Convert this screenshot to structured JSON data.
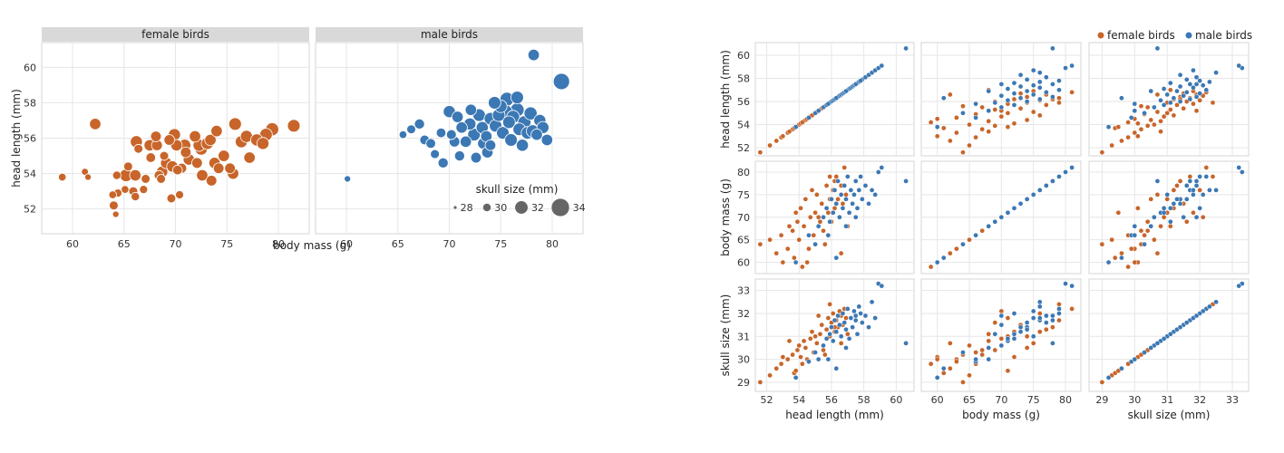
{
  "colors": {
    "female": "#c8652a",
    "male": "#3c78b4",
    "legend_gray": "#666666"
  },
  "chart_data": [
    {
      "type": "scatter",
      "title": "",
      "facets": [
        "female birds",
        "male birds"
      ],
      "xlabel": "body mass (g)",
      "ylabel": "head length (mm)",
      "xlim": [
        57,
        83
      ],
      "ylim": [
        50.6,
        61.4
      ],
      "facet_xticks": [
        [
          60,
          65,
          70,
          75,
          80
        ],
        [
          60,
          65,
          70,
          75,
          80
        ]
      ],
      "yticks": [
        52,
        54,
        56,
        58,
        60
      ],
      "size_legend": {
        "title": "skull size (mm)",
        "values": [
          28,
          30,
          32,
          34
        ]
      },
      "series": [
        {
          "name": "female birds",
          "points": [
            [
              59,
              53.8,
              30.0
            ],
            [
              61.2,
              54.1,
              29.7
            ],
            [
              61.5,
              53.8,
              29.5
            ],
            [
              62.2,
              56.8,
              31.5
            ],
            [
              63.9,
              52.8,
              30.0
            ],
            [
              64,
              52.2,
              30.5
            ],
            [
              64.2,
              51.7,
              29.5
            ],
            [
              64.3,
              53.9,
              30.3
            ],
            [
              64.4,
              52.9,
              30.2
            ],
            [
              65.1,
              53.1,
              30.0
            ],
            [
              65.2,
              53.9,
              32.0
            ],
            [
              65.4,
              54.4,
              30.5
            ],
            [
              65.9,
              53.0,
              30.5
            ],
            [
              66.1,
              53.9,
              31.5
            ],
            [
              66.2,
              55.8,
              31.8
            ],
            [
              66.4,
              55.4,
              30.5
            ],
            [
              66.1,
              52.7,
              30.3
            ],
            [
              66.9,
              53.1,
              30.2
            ],
            [
              67.1,
              53.7,
              30.5
            ],
            [
              67.6,
              54.9,
              30.8
            ],
            [
              68.1,
              56.1,
              31.2
            ],
            [
              68.2,
              55.6,
              31.3
            ],
            [
              68.4,
              53.9,
              30.8
            ],
            [
              68.7,
              54.1,
              31.5
            ],
            [
              68.9,
              55.0,
              30.5
            ],
            [
              69.1,
              54.6,
              31.5
            ],
            [
              69.4,
              55.9,
              31.2
            ],
            [
              69.6,
              52.6,
              30.5
            ],
            [
              69.7,
              54.4,
              31.5
            ],
            [
              69.9,
              56.2,
              31.8
            ],
            [
              70.1,
              55.6,
              31.5
            ],
            [
              70.2,
              54.2,
              30.8
            ],
            [
              70.4,
              52.8,
              30.2
            ],
            [
              70.6,
              54.3,
              31.0
            ],
            [
              70.9,
              55.6,
              31.8
            ],
            [
              71.3,
              54.8,
              31.5
            ],
            [
              71.9,
              56.1,
              31.5
            ],
            [
              72.1,
              54.6,
              31.2
            ],
            [
              72.3,
              55.6,
              31.8
            ],
            [
              72.6,
              53.9,
              31.5
            ],
            [
              72.5,
              55.4,
              32.0
            ],
            [
              73.1,
              55.7,
              31.8
            ],
            [
              73.4,
              55.9,
              31.5
            ],
            [
              73.8,
              54.6,
              31.5
            ],
            [
              74.0,
              56.4,
              31.5
            ],
            [
              74.2,
              54.3,
              31.2
            ],
            [
              74.7,
              55.0,
              31.5
            ],
            [
              75.3,
              54.3,
              31.2
            ],
            [
              75.6,
              54.0,
              31.5
            ],
            [
              75.8,
              56.8,
              32.0
            ],
            [
              76.4,
              55.8,
              31.8
            ],
            [
              76.9,
              56.1,
              31.8
            ],
            [
              77.2,
              54.9,
              31.5
            ],
            [
              77.9,
              55.9,
              31.8
            ],
            [
              78.5,
              55.7,
              31.8
            ],
            [
              78.8,
              56.2,
              32.0
            ],
            [
              79.4,
              56.5,
              32.2
            ],
            [
              81.5,
              56.7,
              32.0
            ],
            [
              67.5,
              55.6,
              31.5
            ],
            [
              68.6,
              53.7,
              30.5
            ],
            [
              71.0,
              55.2,
              31.2
            ],
            [
              73.5,
              53.6,
              31.2
            ]
          ]
        },
        {
          "name": "male birds",
          "points": [
            [
              60.1,
              53.7,
              29.5
            ],
            [
              65.5,
              56.2,
              30.0
            ],
            [
              66.3,
              56.5,
              30.5
            ],
            [
              67.1,
              56.8,
              31.0
            ],
            [
              67.6,
              55.9,
              30.8
            ],
            [
              68.2,
              55.7,
              30.8
            ],
            [
              68.6,
              55.1,
              30.5
            ],
            [
              69.2,
              56.3,
              30.8
            ],
            [
              69.4,
              54.6,
              31.0
            ],
            [
              70.0,
              57.5,
              31.8
            ],
            [
              70.2,
              56.2,
              30.9
            ],
            [
              70.5,
              55.8,
              31.2
            ],
            [
              70.8,
              57.2,
              31.5
            ],
            [
              71.0,
              55.0,
              31.0
            ],
            [
              71.2,
              56.6,
              31.5
            ],
            [
              71.6,
              55.8,
              31.5
            ],
            [
              72.0,
              56.8,
              31.8
            ],
            [
              72.1,
              57.6,
              31.5
            ],
            [
              72.4,
              56.2,
              32.0
            ],
            [
              72.9,
              57.3,
              32.0
            ],
            [
              73.2,
              56.6,
              31.8
            ],
            [
              73.3,
              55.7,
              31.5
            ],
            [
              73.6,
              56.1,
              31.5
            ],
            [
              74.0,
              57.1,
              32.0
            ],
            [
              74.0,
              55.6,
              31.2
            ],
            [
              74.5,
              56.7,
              32.0
            ],
            [
              74.8,
              57.3,
              32.0
            ],
            [
              75.0,
              57.8,
              32.0
            ],
            [
              75.2,
              56.3,
              32.0
            ],
            [
              75.5,
              57.5,
              32.2
            ],
            [
              75.6,
              58.2,
              32.5
            ],
            [
              75.8,
              56.9,
              32.0
            ],
            [
              76.0,
              55.9,
              32.0
            ],
            [
              76.2,
              57.2,
              32.2
            ],
            [
              76.6,
              57.6,
              32.5
            ],
            [
              76.8,
              56.5,
              32.0
            ],
            [
              77.1,
              55.6,
              31.8
            ],
            [
              77.3,
              56.9,
              32.2
            ],
            [
              77.6,
              56.3,
              32.0
            ],
            [
              77.9,
              57.4,
              32.2
            ],
            [
              78.1,
              56.4,
              32.0
            ],
            [
              78.2,
              60.7,
              31.5
            ],
            [
              78.5,
              56.2,
              31.5
            ],
            [
              78.8,
              57.0,
              31.8
            ],
            [
              79.1,
              56.6,
              31.8
            ],
            [
              79.5,
              55.9,
              31.5
            ],
            [
              80.9,
              59.2,
              33.5
            ],
            [
              76.6,
              58.3,
              32.0
            ],
            [
              74.4,
              58.0,
              32.0
            ],
            [
              73.7,
              55.2,
              31.5
            ],
            [
              72.6,
              54.9,
              31.2
            ]
          ]
        }
      ]
    },
    {
      "type": "scatter",
      "title": "",
      "variables": [
        "head length (mm)",
        "body mass (g)",
        "skull size (mm)"
      ],
      "ranges": [
        [
          51.3,
          61.1
        ],
        [
          57.5,
          82.4
        ],
        [
          28.6,
          33.5
        ]
      ],
      "ticks": [
        [
          52,
          54,
          56,
          58,
          60
        ],
        [
          60,
          65,
          70,
          75,
          80
        ],
        [
          29,
          30,
          31,
          32,
          33
        ]
      ],
      "legend": {
        "position": "top-right",
        "entries": [
          "female birds",
          "male birds"
        ]
      },
      "series": [
        {
          "name": "female birds",
          "points": [
            [
              51.6,
              64,
              29.0
            ],
            [
              52.2,
              65,
              29.3
            ],
            [
              52.6,
              62,
              29.6
            ],
            [
              52.9,
              66,
              29.8
            ],
            [
              53.0,
              60,
              30.1
            ],
            [
              53.3,
              63,
              30.0
            ],
            [
              53.6,
              67,
              30.2
            ],
            [
              53.7,
              61,
              29.4
            ],
            [
              53.9,
              69,
              30.4
            ],
            [
              54.0,
              65,
              30.6
            ],
            [
              54.1,
              72,
              30.1
            ],
            [
              54.3,
              68,
              30.8
            ],
            [
              54.4,
              74,
              30.5
            ],
            [
              54.6,
              63,
              29.9
            ],
            [
              54.7,
              70,
              30.9
            ],
            [
              54.9,
              66,
              30.3
            ],
            [
              55.0,
              71,
              31.0
            ],
            [
              55.1,
              75,
              30.7
            ],
            [
              55.3,
              69,
              31.1
            ],
            [
              55.4,
              73,
              31.5
            ],
            [
              55.5,
              67,
              30.4
            ],
            [
              55.7,
              77,
              31.3
            ],
            [
              55.8,
              71,
              31.8
            ],
            [
              55.9,
              74,
              31.0
            ],
            [
              56.0,
              69,
              31.6
            ],
            [
              56.1,
              76,
              32.0
            ],
            [
              56.2,
              72,
              31.2
            ],
            [
              56.3,
              79,
              31.7
            ],
            [
              56.4,
              74,
              31.4
            ],
            [
              56.5,
              70,
              32.1
            ],
            [
              56.6,
              77,
              31.9
            ],
            [
              56.7,
              73,
              31.5
            ],
            [
              56.8,
              81,
              32.2
            ],
            [
              56.9,
              75,
              31.8
            ],
            [
              57.0,
              68,
              31.1
            ],
            [
              54.2,
              59,
              29.8
            ],
            [
              53.8,
              71,
              29.5
            ],
            [
              55.6,
              64,
              30.2
            ],
            [
              56.2,
              78,
              31.4
            ],
            [
              54.8,
              76,
              31.2
            ],
            [
              53.4,
              68,
              30.8
            ],
            [
              55.2,
              70,
              31.9
            ],
            [
              56.6,
              62,
              30.7
            ],
            [
              54.5,
              60,
              30.0
            ],
            [
              55.9,
              79,
              32.4
            ]
          ]
        },
        {
          "name": "male birds",
          "points": [
            [
              53.8,
              60,
              29.2
            ],
            [
              54.6,
              66,
              29.9
            ],
            [
              55.0,
              64,
              30.3
            ],
            [
              55.2,
              68,
              30.0
            ],
            [
              55.5,
              70,
              30.6
            ],
            [
              55.7,
              72,
              30.9
            ],
            [
              55.9,
              69,
              31.1
            ],
            [
              56.0,
              74,
              31.4
            ],
            [
              56.1,
              71,
              30.8
            ],
            [
              56.2,
              76,
              31.7
            ],
            [
              56.3,
              73,
              31.2
            ],
            [
              56.4,
              78,
              31.9
            ],
            [
              56.5,
              70,
              31.5
            ],
            [
              56.6,
              75,
              31.0
            ],
            [
              56.7,
              72,
              32.0
            ],
            [
              56.8,
              77,
              31.6
            ],
            [
              56.9,
              74,
              31.3
            ],
            [
              57.0,
              79,
              32.2
            ],
            [
              57.1,
              71,
              30.9
            ],
            [
              57.2,
              76,
              31.8
            ],
            [
              57.3,
              73,
              31.4
            ],
            [
              57.4,
              75,
              32.1
            ],
            [
              57.5,
              78,
              31.7
            ],
            [
              57.6,
              72,
              31.1
            ],
            [
              57.7,
              76,
              32.3
            ],
            [
              57.9,
              74,
              31.6
            ],
            [
              58.1,
              77,
              31.9
            ],
            [
              58.3,
              73,
              31.4
            ],
            [
              58.5,
              76,
              32.5
            ],
            [
              58.7,
              75,
              31.8
            ],
            [
              58.9,
              80,
              33.3
            ],
            [
              60.6,
              78,
              30.7
            ],
            [
              59.1,
              81,
              33.2
            ],
            [
              56.3,
              61,
              29.6
            ],
            [
              57.8,
              79,
              32.0
            ],
            [
              56.9,
              68,
              30.5
            ],
            [
              55.8,
              66,
              30.0
            ],
            [
              57.5,
              70,
              31.9
            ]
          ]
        }
      ]
    }
  ]
}
